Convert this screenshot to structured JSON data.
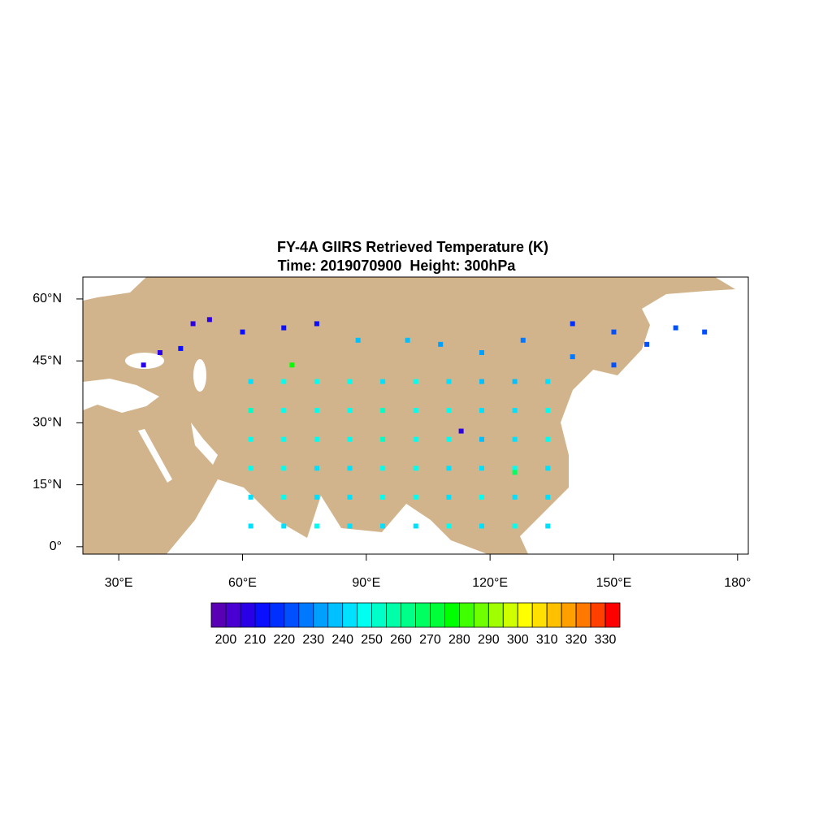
{
  "chart_data": {
    "type": "scatter",
    "title": "FY-4A GIIRS Retrieved Temperature (K)",
    "subtitle": "Time: 2019070900  Height: 300hPa",
    "xlim": [
      21.3,
      182.6
    ],
    "ylim": [
      -1.8,
      65.3
    ],
    "xticks": [
      {
        "value": 30,
        "label": "30°E"
      },
      {
        "value": 60,
        "label": "60°E"
      },
      {
        "value": 90,
        "label": "90°E"
      },
      {
        "value": 120,
        "label": "120°E"
      },
      {
        "value": 150,
        "label": "150°E"
      },
      {
        "value": 180,
        "label": "180°"
      }
    ],
    "yticks": [
      {
        "value": 0,
        "label": "0°"
      },
      {
        "value": 15,
        "label": "15°N"
      },
      {
        "value": 30,
        "label": "30°N"
      },
      {
        "value": 45,
        "label": "45°N"
      },
      {
        "value": 60,
        "label": "60°N"
      }
    ],
    "x": [
      62,
      70,
      78,
      86,
      94,
      102,
      110,
      118,
      126,
      134,
      62,
      70,
      78,
      86,
      94,
      102,
      110,
      118,
      126,
      134,
      62,
      70,
      78,
      86,
      94,
      102,
      110,
      118,
      126,
      134,
      62,
      70,
      78,
      86,
      94,
      102,
      110,
      118,
      126,
      134,
      62,
      70,
      78,
      86,
      94,
      102,
      110,
      118,
      126,
      134,
      62,
      70,
      78,
      86,
      94,
      102,
      110,
      118,
      126,
      134,
      52,
      48,
      60,
      70,
      78,
      40,
      36,
      88,
      100,
      108,
      118,
      128,
      140,
      150,
      158,
      165,
      172,
      140,
      150,
      45,
      126,
      113,
      72
    ],
    "y": [
      5,
      5,
      5,
      5,
      5,
      5,
      5,
      5,
      5,
      5,
      12,
      12,
      12,
      12,
      12,
      12,
      12,
      12,
      12,
      12,
      19,
      19,
      19,
      19,
      19,
      19,
      19,
      19,
      19,
      19,
      26,
      26,
      26,
      26,
      26,
      26,
      26,
      26,
      26,
      26,
      33,
      33,
      33,
      33,
      33,
      33,
      33,
      33,
      33,
      33,
      40,
      40,
      40,
      40,
      40,
      40,
      40,
      40,
      40,
      40,
      55,
      54,
      52,
      53,
      54,
      47,
      44,
      50,
      50,
      49,
      47,
      50,
      54,
      52,
      49,
      53,
      52,
      46,
      44,
      48,
      18,
      28,
      44
    ],
    "values": [
      244,
      243,
      245,
      244,
      243,
      244,
      245,
      244,
      246,
      244,
      244,
      245,
      244,
      243,
      245,
      246,
      244,
      245,
      243,
      244,
      245,
      246,
      244,
      243,
      246,
      245,
      244,
      240,
      245,
      244,
      248,
      247,
      249,
      248,
      250,
      247,
      245,
      238,
      244,
      246,
      250,
      249,
      248,
      247,
      250,
      248,
      246,
      240,
      243,
      245,
      244,
      246,
      247,
      245,
      243,
      246,
      242,
      236,
      238,
      240,
      205,
      208,
      210,
      212,
      214,
      208,
      206,
      236,
      238,
      232,
      230,
      225,
      218,
      220,
      222,
      224,
      222,
      226,
      224,
      210,
      268,
      205,
      275
    ],
    "colorbar": {
      "labels": [
        200,
        210,
        220,
        230,
        240,
        250,
        260,
        270,
        280,
        290,
        300,
        310,
        320,
        330
      ],
      "colors": [
        "#5a00b4",
        "#4a00d0",
        "#2a00e6",
        "#0a10ff",
        "#0030ff",
        "#0050ff",
        "#0078ff",
        "#00a0ff",
        "#00c0ff",
        "#00e0ff",
        "#00fff0",
        "#00ffc8",
        "#00ffa8",
        "#00ff88",
        "#00ff60",
        "#00ff38",
        "#00ff00",
        "#40ff00",
        "#70ff00",
        "#a0ff00",
        "#d0ff00",
        "#ffff00",
        "#ffe000",
        "#ffc000",
        "#ffa000",
        "#ff7800",
        "#ff4000",
        "#ff0000"
      ]
    }
  }
}
